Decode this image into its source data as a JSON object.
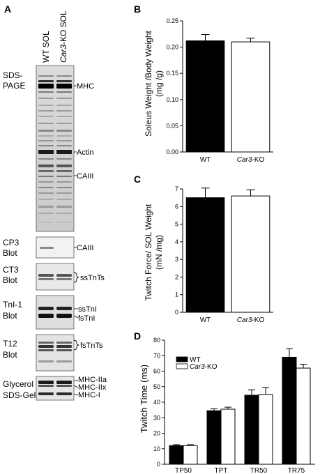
{
  "panel_a": {
    "letter": "A",
    "lanes": [
      {
        "prefix": "",
        "italic": "",
        "suffix": "WT SOL"
      },
      {
        "prefix": "",
        "italic": "Car3",
        "suffix": "-KO SOL"
      }
    ],
    "sds_label": [
      "SDS-",
      "PAGE"
    ],
    "gel_bands": [
      "MHC",
      "Actin",
      "CAIII"
    ],
    "blots": [
      {
        "name": [
          "CP3",
          "Blot"
        ],
        "bands": [
          "CAIII"
        ]
      },
      {
        "name": [
          "CT3",
          "Blot"
        ],
        "bands": [
          "ssTnTs"
        ]
      },
      {
        "name": [
          "TnI-1",
          "Blot"
        ],
        "bands": [
          "ssTnI",
          "fsTnI"
        ]
      },
      {
        "name": [
          "T12",
          "Blot"
        ],
        "bands": [
          "fsTnTs"
        ]
      },
      {
        "name": [
          "Glycerol",
          "SDS-Gel"
        ],
        "bands": [
          "MHC-IIa",
          "MHC-IIx",
          "MHC-I"
        ]
      }
    ]
  },
  "chart_data": [
    {
      "panel": "B",
      "type": "bar",
      "categories": [
        "WT",
        "Car3-KO"
      ],
      "values": [
        0.212,
        0.21
      ],
      "errors": [
        0.012,
        0.007
      ],
      "ylabel": [
        "Soleus Weight /Body Weight",
        "(mg /g)"
      ],
      "ylim": [
        0,
        0.25
      ],
      "yticks": [
        "0.00",
        "0.05",
        "0.10",
        "0.15",
        "0.20",
        "0.25"
      ],
      "colors": [
        "#000000",
        "#ffffff"
      ]
    },
    {
      "panel": "C",
      "type": "bar",
      "categories": [
        "WT",
        "Car3-KO"
      ],
      "values": [
        6.5,
        6.6
      ],
      "errors": [
        0.55,
        0.35
      ],
      "ylabel": [
        "Twitch Force/ SOL Weight",
        "(mN /mg)"
      ],
      "ylim": [
        0,
        7
      ],
      "yticks": [
        "0",
        "1",
        "2",
        "3",
        "4",
        "5",
        "6",
        "7"
      ],
      "colors": [
        "#000000",
        "#ffffff"
      ]
    },
    {
      "panel": "D",
      "type": "bar",
      "categories": [
        "TP50",
        "TPT",
        "TR50",
        "TR75"
      ],
      "series": [
        {
          "name": "WT",
          "values": [
            12,
            34.5,
            44.5,
            69
          ],
          "errors": [
            0.6,
            1.2,
            3.5,
            5.5
          ],
          "color": "#000000"
        },
        {
          "name": "Car3-KO",
          "values": [
            12,
            35.5,
            45,
            62
          ],
          "errors": [
            0.6,
            1.3,
            4.5,
            2.5
          ],
          "color": "#ffffff"
        }
      ],
      "ylabel": "Twitch Time (ms)",
      "ylim": [
        0,
        80
      ],
      "yticks": [
        "0",
        "10",
        "20",
        "30",
        "40",
        "50",
        "60",
        "70",
        "80"
      ],
      "legend": "top-left"
    }
  ]
}
